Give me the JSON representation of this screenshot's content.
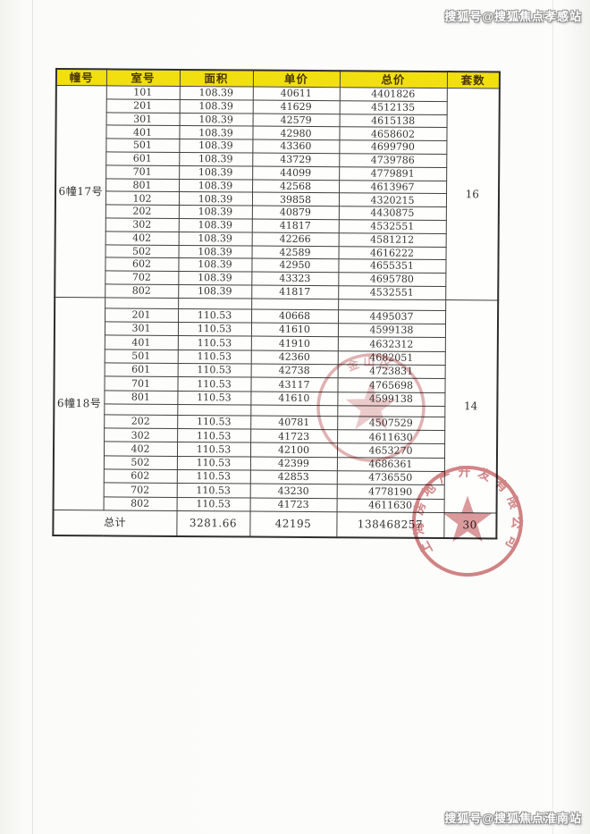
{
  "page": {
    "watermark_top": "搜狐号@搜狐焦点孝感站",
    "watermark_bottom": "搜狐号@搜狐焦点淮南站"
  },
  "colors": {
    "header_bg": "#f2df10",
    "stamp_red": "#c96a6c",
    "border": "#3f3f3f"
  },
  "table": {
    "headers": [
      "幢号",
      "室号",
      "面积",
      "单价",
      "总价",
      "套数"
    ],
    "sections": [
      {
        "building": "6幢17号",
        "units": "16",
        "rows": [
          [
            "101",
            "108.39",
            "40611",
            "4401826"
          ],
          [
            "201",
            "108.39",
            "41629",
            "4512135"
          ],
          [
            "301",
            "108.39",
            "42579",
            "4615138"
          ],
          [
            "401",
            "108.39",
            "42980",
            "4658602"
          ],
          [
            "501",
            "108.39",
            "43360",
            "4699790"
          ],
          [
            "601",
            "108.39",
            "43729",
            "4739786"
          ],
          [
            "701",
            "108.39",
            "44099",
            "4779891"
          ],
          [
            "801",
            "108.39",
            "42568",
            "4613967"
          ],
          [
            "102",
            "108.39",
            "39858",
            "4320215"
          ],
          [
            "202",
            "108.39",
            "40879",
            "4430875"
          ],
          [
            "302",
            "108.39",
            "41817",
            "4532551"
          ],
          [
            "402",
            "108.39",
            "42266",
            "4581212"
          ],
          [
            "502",
            "108.39",
            "42589",
            "4616222"
          ],
          [
            "602",
            "108.39",
            "42950",
            "4655351"
          ],
          [
            "702",
            "108.39",
            "43323",
            "4695780"
          ],
          [
            "802",
            "108.39",
            "41817",
            "4532551"
          ]
        ]
      },
      {
        "building": "6幢18号",
        "units": "14",
        "rows": [
          [
            "",
            "",
            "",
            ""
          ],
          [
            "201",
            "110.53",
            "40668",
            "4495037"
          ],
          [
            "301",
            "110.53",
            "41610",
            "4599138"
          ],
          [
            "401",
            "110.53",
            "41910",
            "4632312"
          ],
          [
            "501",
            "110.53",
            "42360",
            "4682051"
          ],
          [
            "601",
            "110.53",
            "42738",
            "4723831"
          ],
          [
            "701",
            "110.53",
            "43117",
            "4765698"
          ],
          [
            "801",
            "110.53",
            "41610",
            "4599138"
          ],
          [
            "",
            "",
            "",
            ""
          ],
          [
            "202",
            "110.53",
            "40781",
            "4507529"
          ],
          [
            "302",
            "110.53",
            "41723",
            "4611630"
          ],
          [
            "402",
            "110.53",
            "42100",
            "4653270"
          ],
          [
            "502",
            "110.53",
            "42399",
            "4686361"
          ],
          [
            "602",
            "110.53",
            "42853",
            "4736550"
          ],
          [
            "702",
            "110.53",
            "43230",
            "4778190"
          ],
          [
            "802",
            "110.53",
            "41723",
            "4611630"
          ]
        ]
      }
    ],
    "total": {
      "label": "总计",
      "area": "3281.66",
      "unit_price": "42195",
      "total_price": "138468257",
      "units": "30"
    }
  },
  "stamps": [
    {
      "arc_text": "金山区"
    },
    {
      "arc_text": "上海房地产开发有限公司"
    }
  ]
}
